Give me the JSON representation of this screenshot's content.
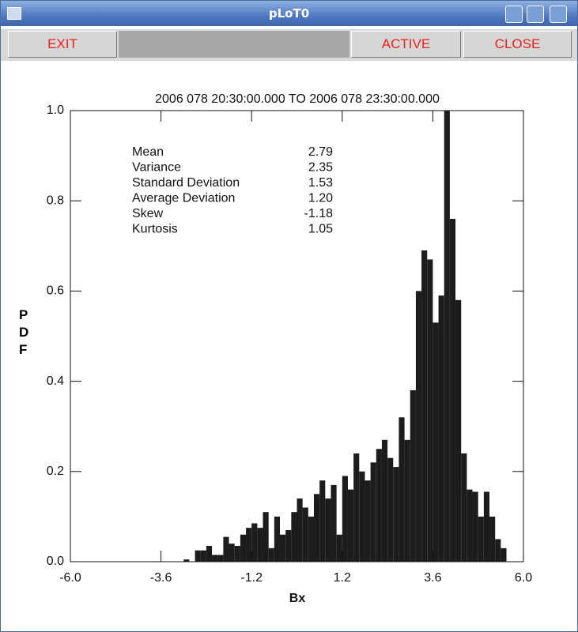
{
  "window": {
    "title": "pLoT0"
  },
  "buttons": [
    "EXIT",
    "ACTIVE",
    "CLOSE"
  ],
  "chart_data": {
    "type": "histogram",
    "title": "2006 078 20:30:00.000 TO 2006 078 23:30:00.000",
    "xlabel": "Bx",
    "ylabel": "PDF",
    "color": "#1c1c1c",
    "bins": [
      -3.0,
      -2.85,
      -2.7,
      -2.55,
      -2.4,
      -2.25,
      -2.1,
      -1.95,
      -1.8,
      -1.65,
      -1.5,
      -1.35,
      -1.2,
      -1.05,
      -0.9,
      -0.75,
      -0.6,
      -0.45,
      -0.3,
      -0.15,
      0,
      0.15,
      0.3,
      0.45,
      0.6,
      0.75,
      0.9,
      1.05,
      1.2,
      1.35,
      1.5,
      1.65,
      1.8,
      1.95,
      2.1,
      2.25,
      2.4,
      2.55,
      2.7,
      2.85,
      3.0,
      3.15,
      3.3,
      3.45,
      3.6,
      3.75,
      3.9,
      4.05,
      4.2,
      4.35,
      4.5,
      4.65,
      4.8,
      4.95,
      5.1,
      5.25,
      5.4,
      5.55
    ],
    "values": [
      0.005,
      0,
      0.025,
      0.025,
      0.035,
      0.015,
      0.015,
      0.055,
      0.04,
      0.035,
      0.06,
      0.075,
      0.085,
      0.075,
      0.11,
      0.03,
      0.1,
      0.06,
      0.07,
      0.11,
      0.14,
      0.12,
      0.1,
      0.15,
      0.18,
      0.14,
      0.17,
      0.06,
      0.19,
      0.16,
      0.24,
      0.2,
      0.18,
      0.22,
      0.25,
      0.27,
      0.23,
      0.21,
      0.32,
      0.27,
      0.38,
      0.6,
      0.69,
      0.67,
      0.53,
      0.59,
      1.0,
      0.76,
      0.58,
      0.24,
      0.16,
      0.155,
      0.1,
      0.155,
      0.1,
      0.05,
      0.03
    ],
    "xlim": [
      -6,
      6
    ],
    "ylim": [
      0,
      1
    ],
    "xticks": [
      {
        "value": -6,
        "label": "-6.0"
      },
      {
        "value": -3.6,
        "label": "-3.6"
      },
      {
        "value": -1.2,
        "label": "-1.2"
      },
      {
        "value": 1.2,
        "label": "1.2"
      },
      {
        "value": 3.6,
        "label": "3.6"
      },
      {
        "value": 6,
        "label": "6.0"
      }
    ],
    "yticks": [
      {
        "value": 0,
        "label": "0.0"
      },
      {
        "value": 0.2,
        "label": "0.2"
      },
      {
        "value": 0.4,
        "label": "0.4"
      },
      {
        "value": 0.6,
        "label": "0.6"
      },
      {
        "value": 0.8,
        "label": "0.8"
      },
      {
        "value": 1,
        "label": "1.0"
      }
    ],
    "stats": [
      [
        "Mean",
        "2.79"
      ],
      [
        "Variance",
        "2.35"
      ],
      [
        "Standard Deviation",
        "1.53"
      ],
      [
        "Average Deviation",
        "1.20"
      ],
      [
        "Skew",
        "-1.18"
      ],
      [
        "Kurtosis",
        "1.05"
      ]
    ]
  }
}
